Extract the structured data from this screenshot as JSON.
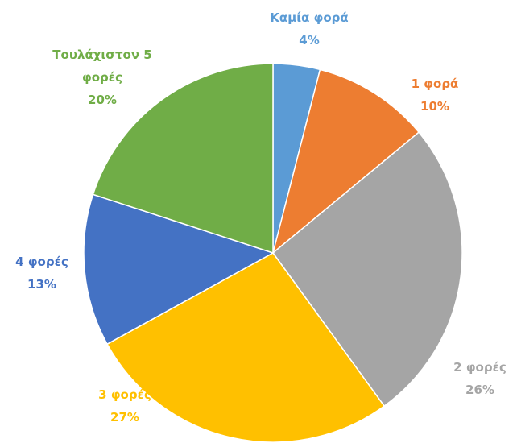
{
  "chart_data": {
    "type": "pie",
    "categories": [
      "Καμία φορά",
      "1 φορά",
      "2 φορές",
      "3 φορές",
      "4 φορές",
      "Τουλάχιστον 5 φορές"
    ],
    "values": [
      4,
      10,
      26,
      27,
      13,
      20
    ],
    "value_labels": [
      "4%",
      "10%",
      "26%",
      "27%",
      "13%",
      "20%"
    ],
    "colors": [
      "#5b9bd5",
      "#ed7d31",
      "#a5a5a5",
      "#ffc000",
      "#4472c4",
      "#70ad47"
    ]
  }
}
